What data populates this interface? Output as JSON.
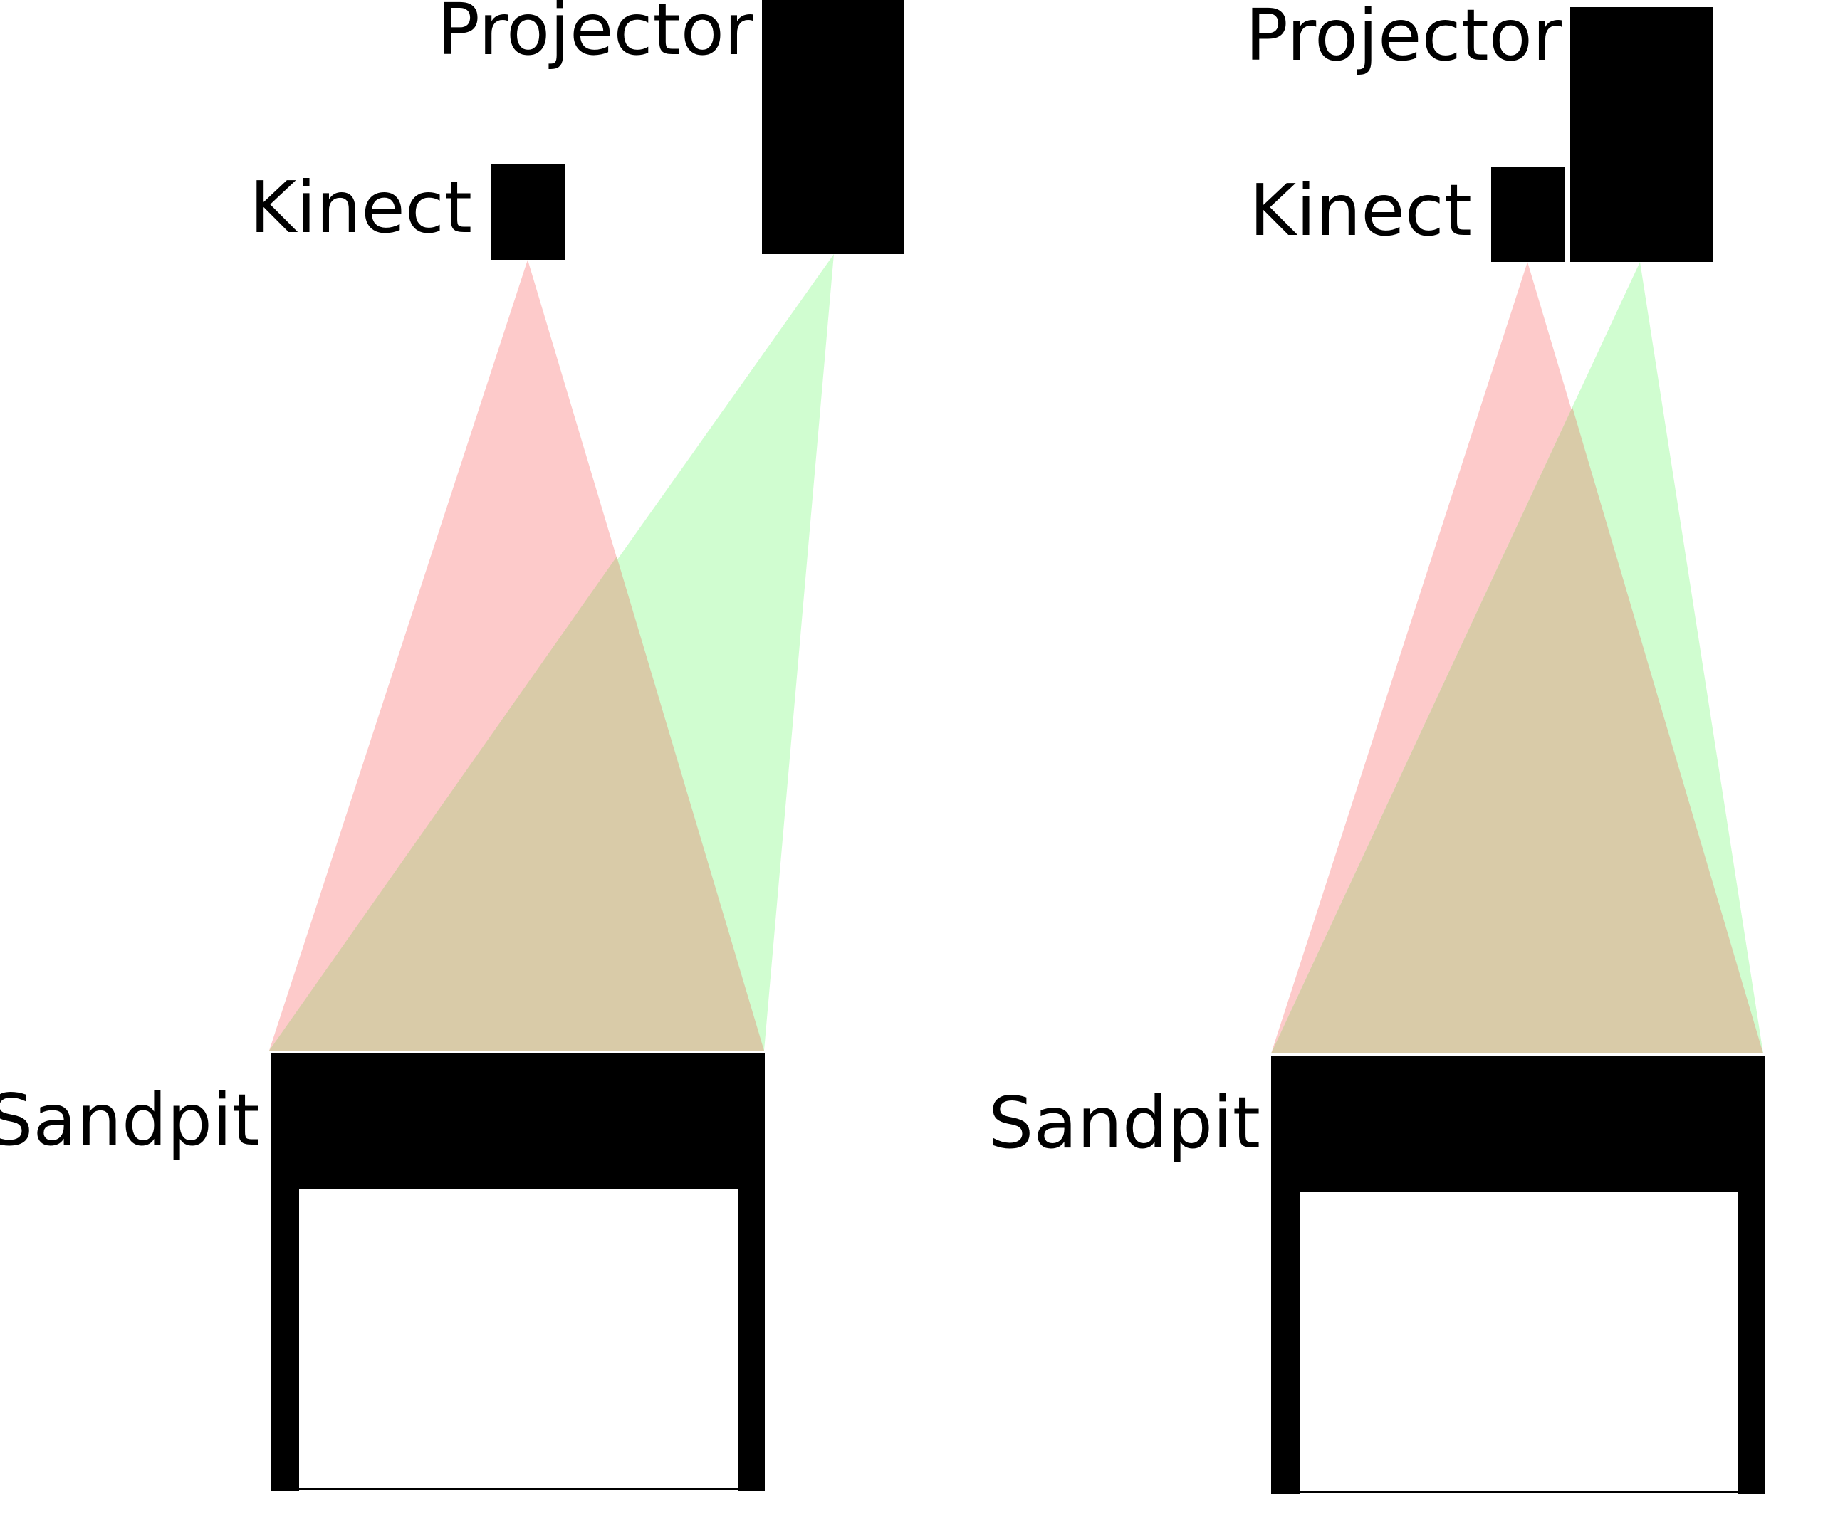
{
  "colors": {
    "kinect_fov": "#fdcaca",
    "projector_fov": "#d0fdd0",
    "overlap": "#d9cba8",
    "solid": "#000000",
    "background": "#ffffff"
  },
  "setups": [
    {
      "id": "separated",
      "projector_label": "Projector",
      "kinect_label": "Kinect",
      "sandpit_label": "Sandpit"
    },
    {
      "id": "adjacent",
      "projector_label": "Projector",
      "kinect_label": "Kinect",
      "sandpit_label": "Sandpit"
    }
  ]
}
